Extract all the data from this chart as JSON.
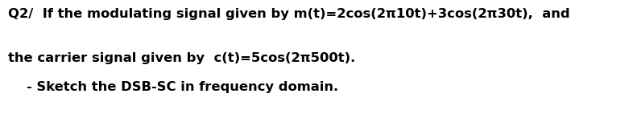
{
  "line1": "Q2/  If the modulating signal given by m(t)=2cos(2π10t)+3cos(2π30t),  and",
  "line2": "the carrier signal given by  c(t)=5cos(2π500t).",
  "line3": "    - Sketch the DSB-SC in frequency domain.",
  "background_color": "#ffffff",
  "text_color": "#000000",
  "font_size_main": 11.8,
  "font_size_sub": 11.8,
  "fig_width": 7.86,
  "fig_height": 1.42,
  "dpi": 100
}
